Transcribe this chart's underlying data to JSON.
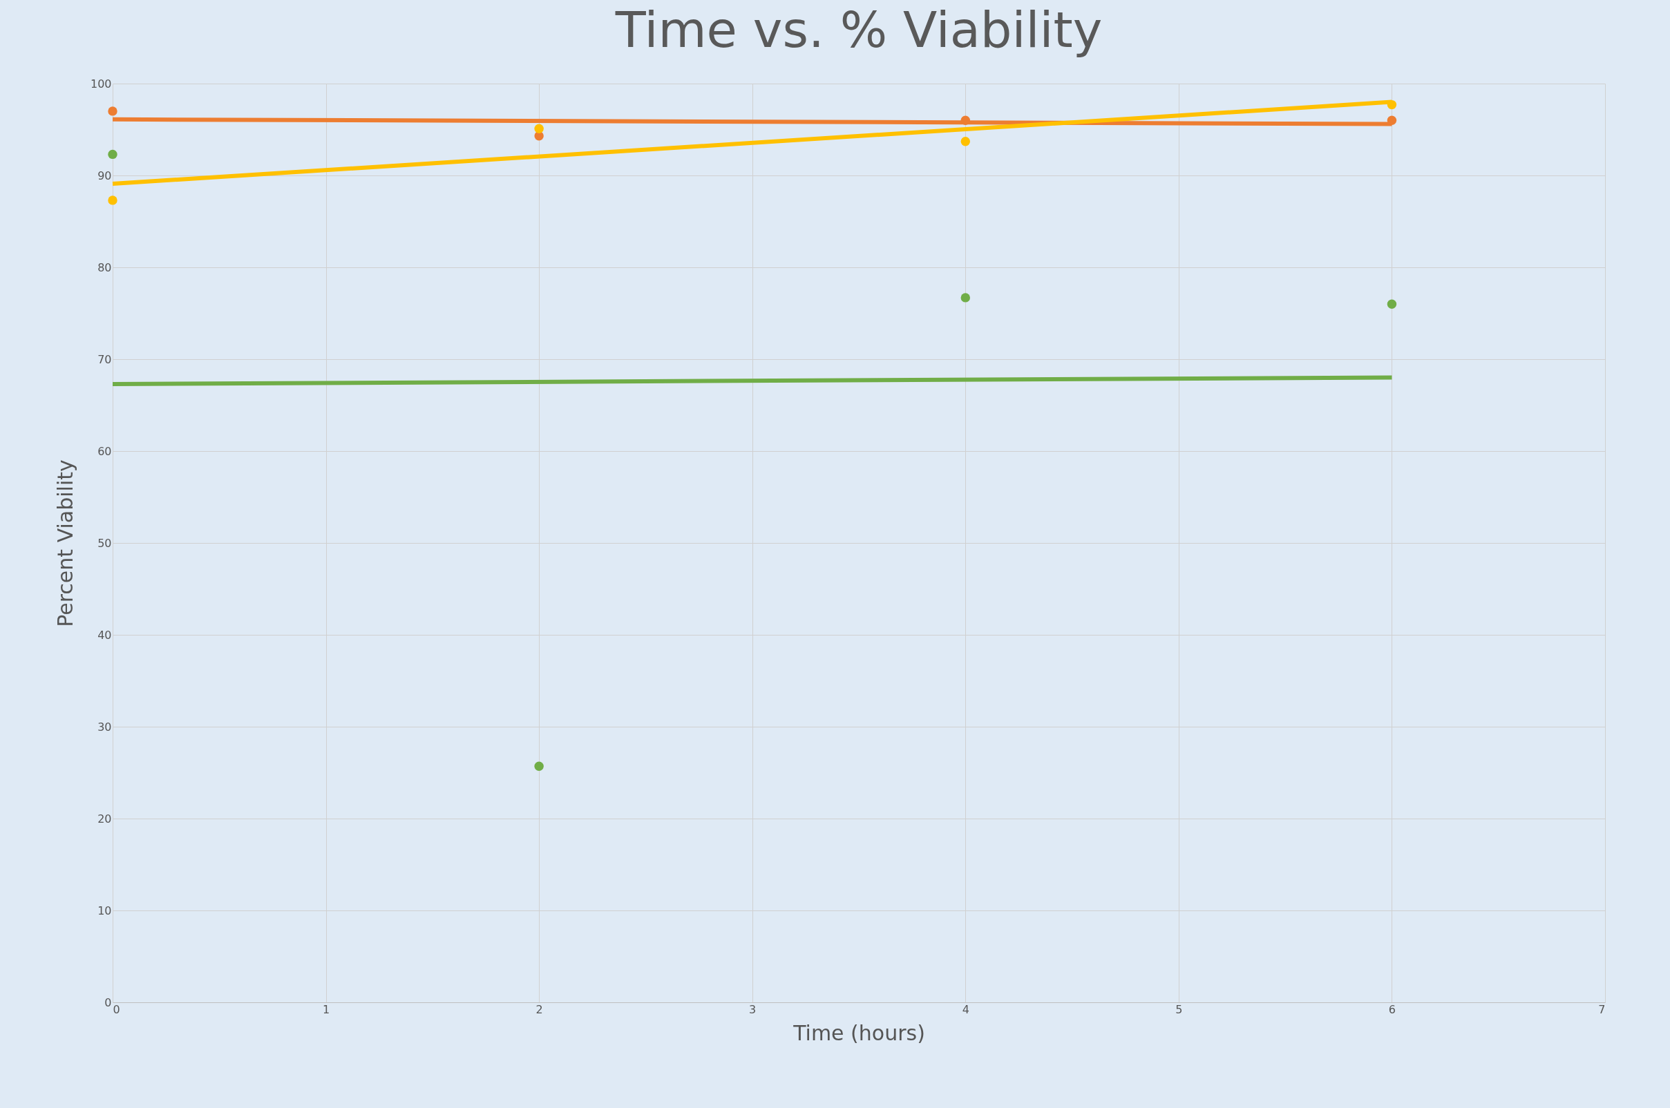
{
  "chart_data": {
    "type": "scatter",
    "title": "Time vs. % Viability",
    "xlabel": "Time (hours)",
    "ylabel": "Percent Viability",
    "xlim": [
      0,
      7
    ],
    "xticks": [
      0,
      1,
      2,
      3,
      4,
      5,
      6,
      7
    ],
    "ylim": [
      0,
      100
    ],
    "yticks": [
      0,
      10,
      20,
      30,
      40,
      50,
      60,
      70,
      80,
      90,
      100
    ],
    "grid": true,
    "series": [
      {
        "color": "#ed7d31",
        "marker": "circle",
        "x": [
          0,
          2,
          4,
          6
        ],
        "values": [
          97.0,
          94.3,
          96.0,
          96.0
        ]
      },
      {
        "color": "#ffc000",
        "marker": "circle",
        "x": [
          0,
          2,
          4,
          6
        ],
        "values": [
          87.3,
          95.1,
          93.7,
          97.7
        ]
      },
      {
        "color": "#70ad47",
        "marker": "circle",
        "x": [
          0,
          2,
          4,
          6
        ],
        "values": [
          92.3,
          25.7,
          76.7,
          76.0
        ]
      },
      {
        "type": "line",
        "color": "#ed7d31",
        "x": [
          0,
          6
        ],
        "values": [
          96.1,
          95.6
        ]
      },
      {
        "type": "line",
        "color": "#ffc000",
        "x": [
          0,
          6
        ],
        "values": [
          89.1,
          98.0
        ]
      },
      {
        "type": "line",
        "color": "#70ad47",
        "x": [
          0,
          6
        ],
        "values": [
          67.3,
          68.0
        ]
      }
    ]
  }
}
